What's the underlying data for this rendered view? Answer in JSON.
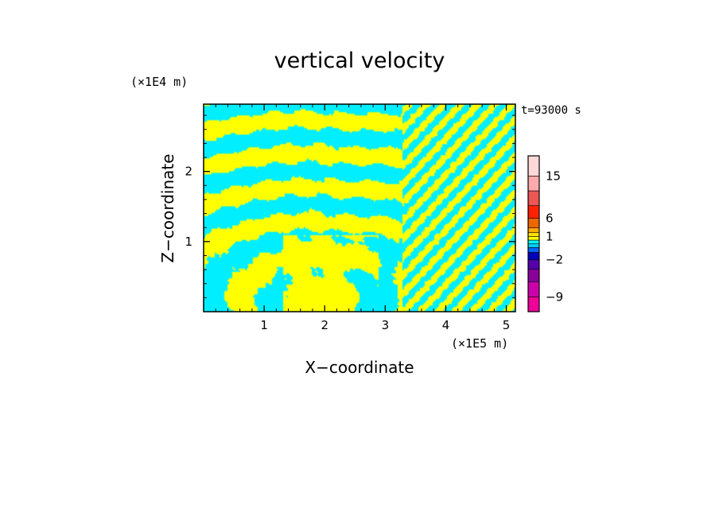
{
  "chart_data": {
    "type": "heatmap",
    "title": "vertical velocity",
    "xlabel": "X−coordinate",
    "ylabel": "Z−coordinate",
    "x_unit": "(×1E5 m)",
    "y_unit": "(×1E4 m)",
    "time_label": "t=93000 s",
    "xlim": [
      0,
      5.15
    ],
    "ylim": [
      0,
      2.96
    ],
    "x_ticks": [
      1,
      2,
      3,
      4,
      5
    ],
    "y_ticks": [
      1,
      2
    ],
    "x_tick_labels": [
      "1",
      "2",
      "3",
      "4",
      "5"
    ],
    "y_tick_labels": [
      "1",
      "2"
    ],
    "field_colors": {
      "positive": "#ffff00",
      "negative": "#00eeff"
    },
    "colorbar": {
      "levels": [
        -12,
        -9,
        -6,
        -4,
        -2,
        -1,
        -0.5,
        0,
        0.5,
        1,
        2,
        4,
        6,
        9,
        12,
        15,
        20
      ],
      "colors": [
        "#ee0099",
        "#cc00aa",
        "#880099",
        "#5500aa",
        "#0000bb",
        "#0066ff",
        "#00ccff",
        "#00ffff",
        "#ffff00",
        "#ffdd00",
        "#ffaa00",
        "#ee6600",
        "#ff2200",
        "#ee5555",
        "#ffaaaa",
        "#ffd8d8"
      ],
      "tick_labels": [
        {
          "value": 15,
          "label": "15"
        },
        {
          "value": 6,
          "label": "6"
        },
        {
          "value": 1,
          "label": "1"
        },
        {
          "value": -2,
          "label": "−2"
        },
        {
          "value": -9,
          "label": "−9"
        }
      ]
    }
  }
}
